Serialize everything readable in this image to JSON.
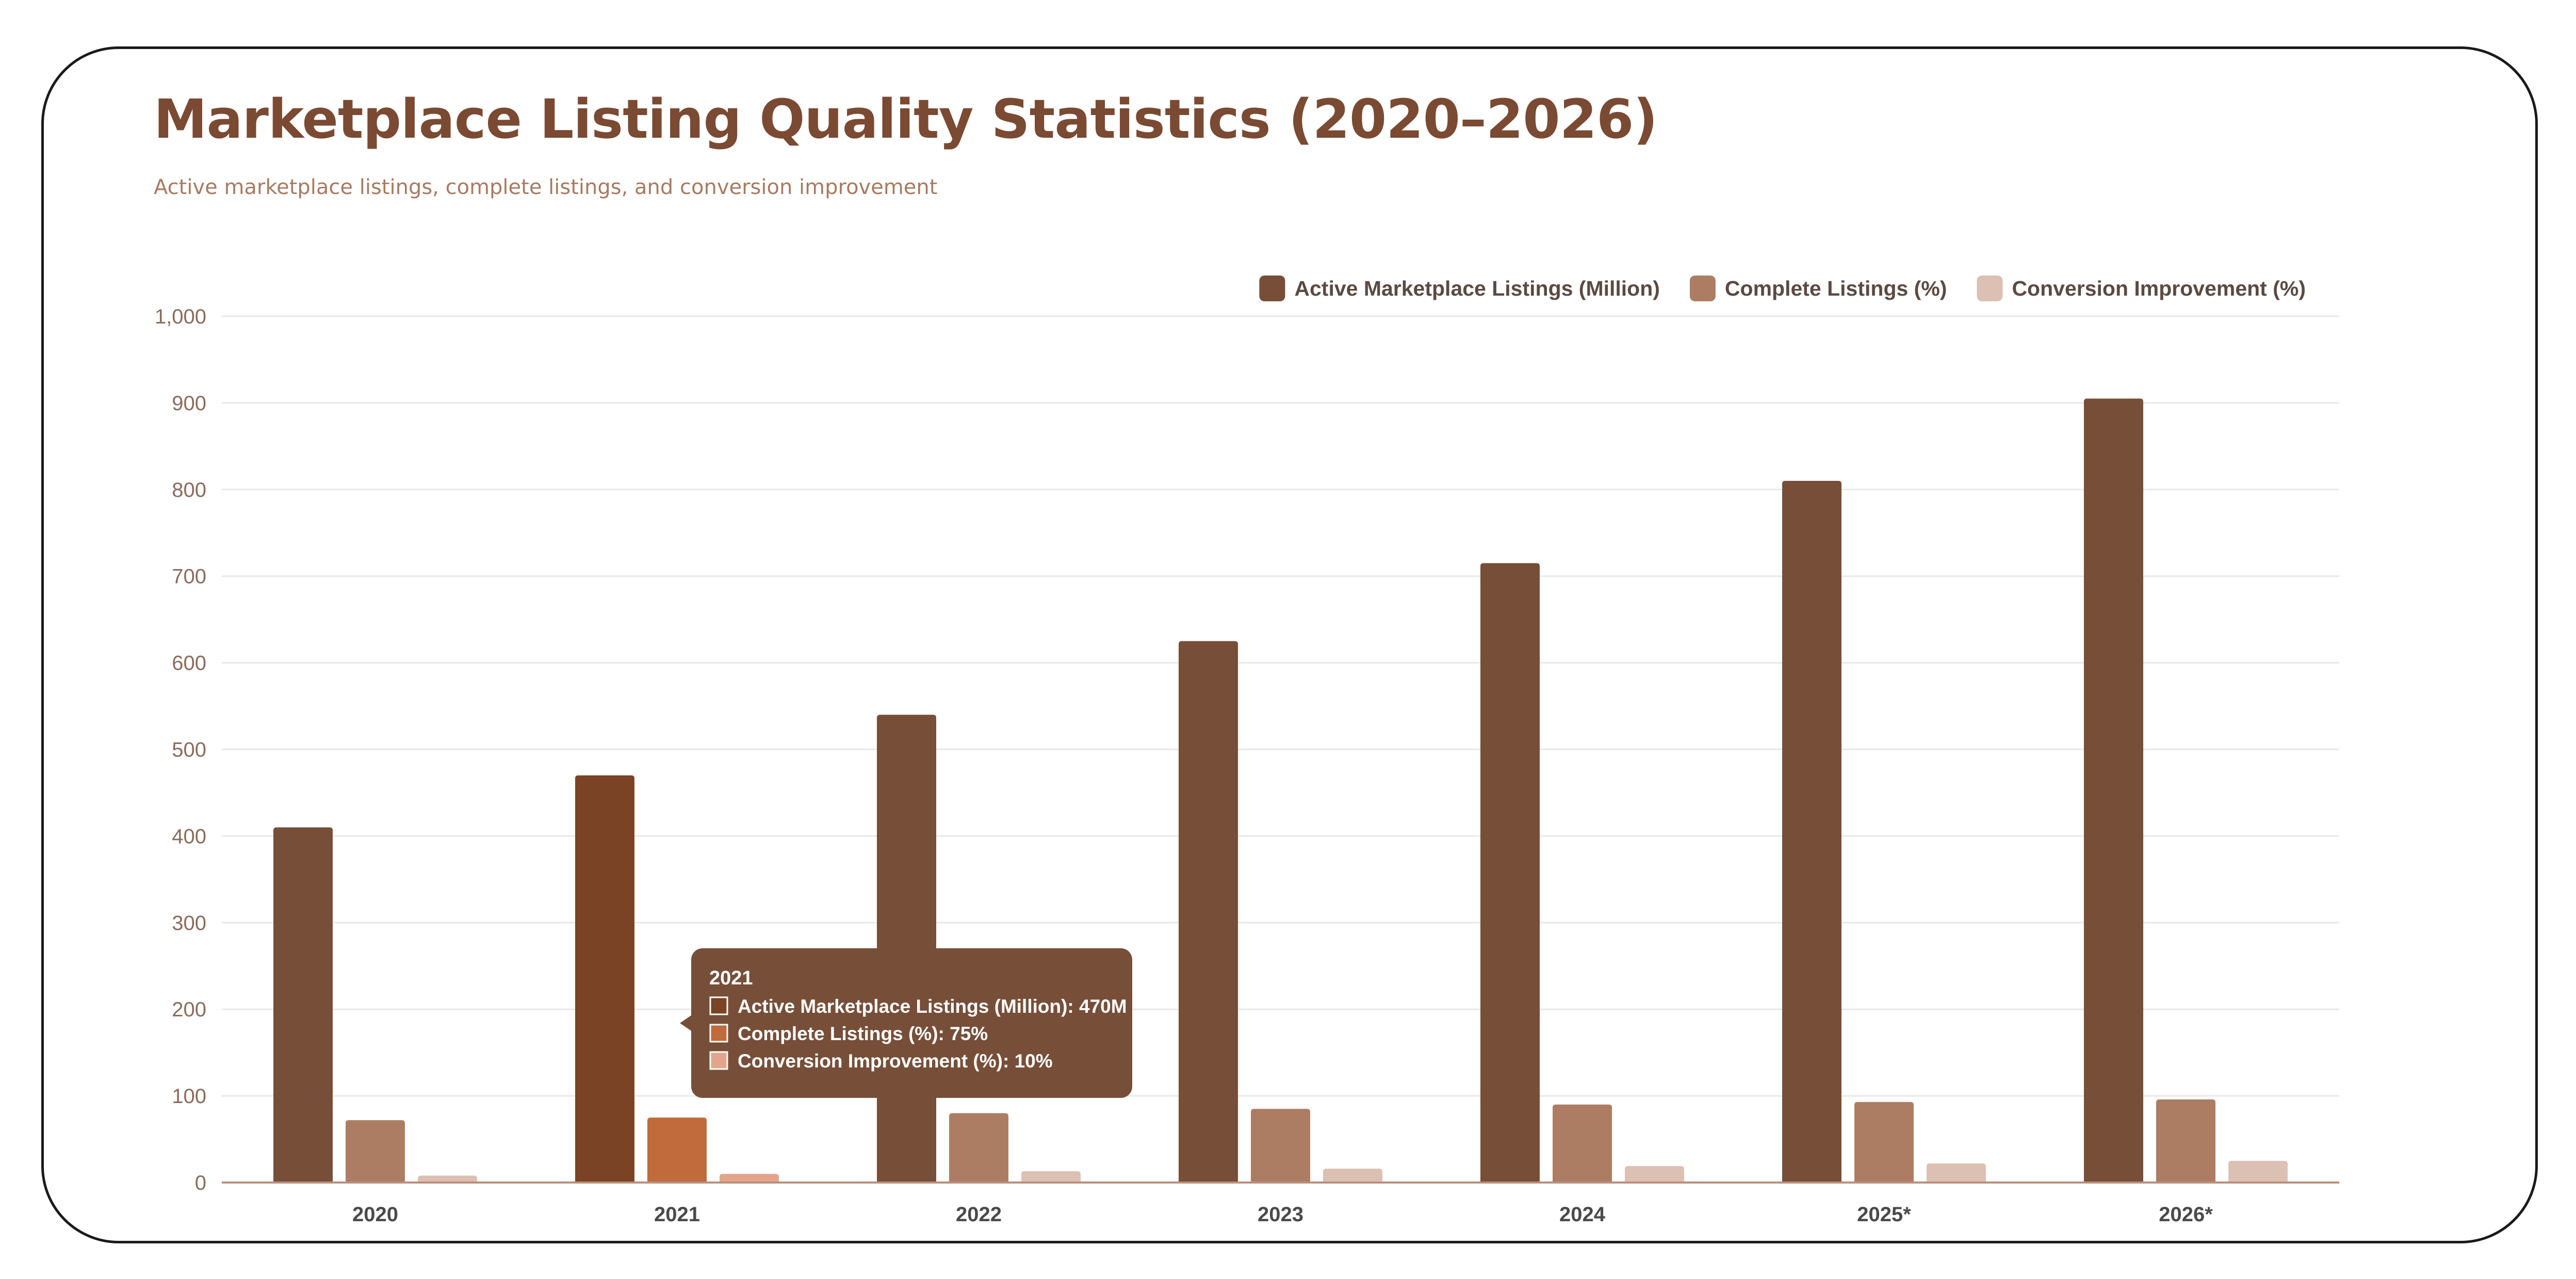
{
  "page": {
    "title": "Marketplace Listing Quality Statistics (2020–2026)",
    "subtitle": "Active marketplace listings, complete listings, and conversion improvement"
  },
  "chart_data": {
    "type": "bar",
    "categories": [
      "2020",
      "2021",
      "2022",
      "2023",
      "2024",
      "2025*",
      "2026*"
    ],
    "series": [
      {
        "name": "Active Marketplace Listings (Million)",
        "color": "#774e38",
        "values": [
          410,
          470,
          540,
          625,
          715,
          810,
          905
        ]
      },
      {
        "name": "Complete Listings (%)",
        "color": "#ad7d63",
        "values": [
          72,
          75,
          80,
          85,
          90,
          93,
          96
        ]
      },
      {
        "name": "Conversion Improvement (%)",
        "color": "#dcc0b3",
        "values": [
          8,
          10,
          13,
          16,
          19,
          22,
          25
        ]
      }
    ],
    "ylim": [
      0,
      1000
    ],
    "yticks": [
      0,
      100,
      200,
      300,
      400,
      500,
      600,
      700,
      800,
      900,
      1000
    ],
    "ytick_labels": [
      "0",
      "100",
      "200",
      "300",
      "400",
      "500",
      "600",
      "700",
      "800",
      "900",
      "1,000"
    ],
    "grid": true,
    "legend_position": "top-right",
    "highlight": {
      "category": "2021",
      "colors": [
        "#7a4325",
        "#c16a3c",
        "#e2a58b"
      ]
    },
    "tooltip": {
      "title": "2021",
      "lines": [
        "Active Marketplace Listings (Million): 470M",
        "Complete Listings (%): 75%",
        "Conversion Improvement (%): 10%"
      ]
    }
  }
}
